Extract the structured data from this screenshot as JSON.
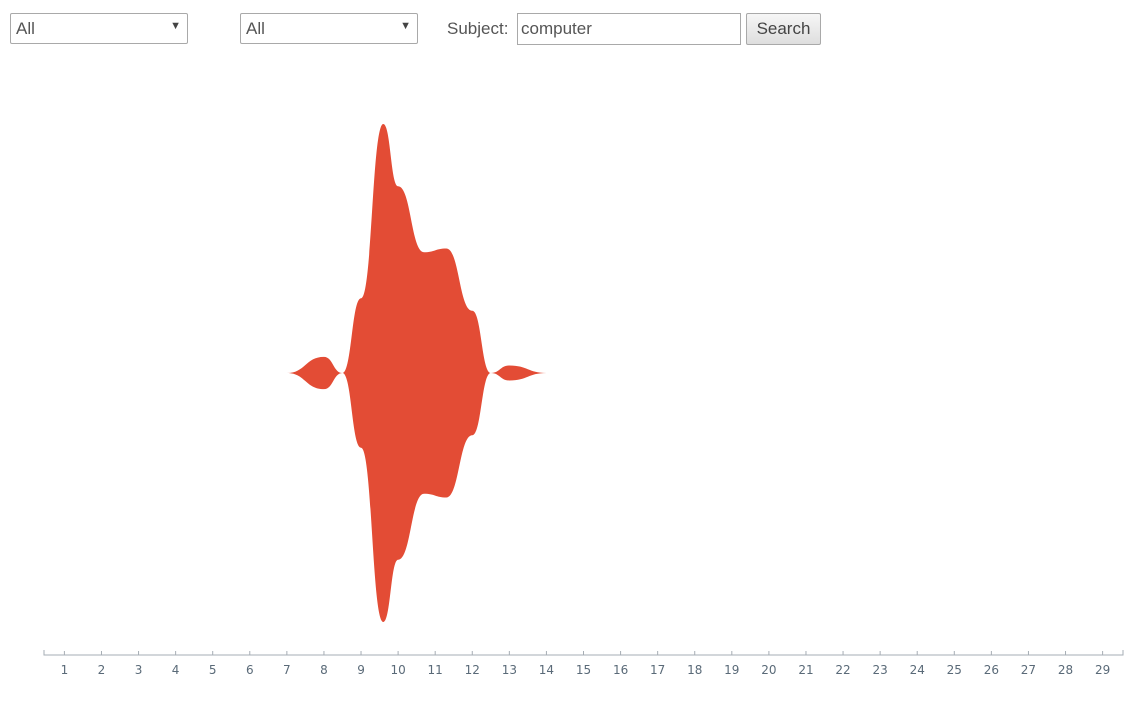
{
  "filters": {
    "first_select": {
      "selected": "All"
    },
    "second_select": {
      "selected": "All"
    },
    "subject_label": "Subject:",
    "subject_value": "computer",
    "search_label": "Search"
  },
  "chart_data": {
    "type": "area",
    "style": "streamgraph",
    "x": [
      1,
      2,
      3,
      4,
      5,
      6,
      7,
      8,
      8.5,
      9,
      9.6,
      10,
      10.7,
      11.3,
      12,
      12.5,
      13,
      14,
      15,
      16,
      17,
      18,
      19,
      20,
      21,
      22,
      23,
      24,
      25,
      26,
      27,
      28,
      29
    ],
    "series": [
      {
        "values": [
          0,
          0,
          0,
          0,
          0,
          0,
          0,
          0.13,
          0,
          0.6,
          2.0,
          1.5,
          0.97,
          1.0,
          0.5,
          0,
          0.06,
          0,
          0,
          0,
          0,
          0,
          0,
          0,
          0,
          0,
          0,
          0,
          0,
          0,
          0,
          0,
          0
        ]
      }
    ],
    "tick_labels": [
      "1",
      "2",
      "3",
      "4",
      "5",
      "6",
      "7",
      "8",
      "9",
      "10",
      "11",
      "12",
      "13",
      "14",
      "15",
      "16",
      "17",
      "18",
      "19",
      "20",
      "21",
      "22",
      "23",
      "24",
      "25",
      "26",
      "27",
      "28",
      "29"
    ],
    "xlim": [
      0.45,
      29.55
    ],
    "color": "#e34c35",
    "grid": false,
    "legend": "none"
  }
}
